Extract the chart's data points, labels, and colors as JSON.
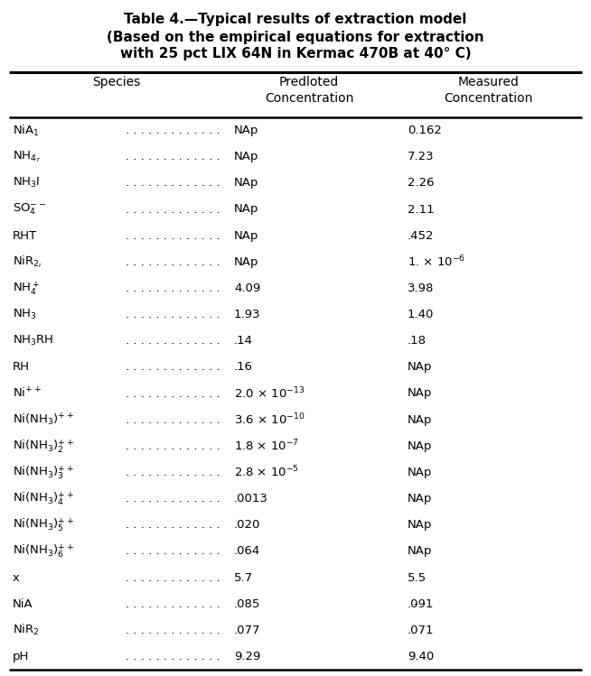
{
  "title1": "Table 4.—Typical results of extraction model",
  "title2_line1": "(Based on the empirical equations for extraction",
  "title2_line2": "with 25 pct LIX 64N in Kermac 470B at 40° C)",
  "header_species": "Species",
  "header_predicted": "Predloted\nConcentration",
  "header_measured": "Measured\nConcentration",
  "rows": [
    {
      "species": "NiA$_1$",
      "predicted": "NAp",
      "measured": "0.162"
    },
    {
      "species": "NH$_{4_T}$",
      "predicted": "NAp",
      "measured": "7.23"
    },
    {
      "species": "NH$_3$I",
      "predicted": "NAp",
      "measured": "2.26"
    },
    {
      "species": "SO$_4^{--}$",
      "predicted": "NAp",
      "measured": "2.11"
    },
    {
      "species": "RHT",
      "predicted": "NAp",
      "measured": ".452"
    },
    {
      "species": "NiR$_{2_I}$",
      "predicted": "NAp",
      "measured": "1. × 10$^{-6}$"
    },
    {
      "species": "NH$_4^+$",
      "predicted": "4.09",
      "measured": "3.98"
    },
    {
      "species": "NH$_3$",
      "predicted": "1.93",
      "measured": "1.40"
    },
    {
      "species": "NH$_3$RH",
      "predicted": ".14",
      "measured": ".18"
    },
    {
      "species": "RH",
      "predicted": ".16",
      "measured": "NAp"
    },
    {
      "species": "Ni$^{++}$",
      "predicted": "2.0 × 10$^{-13}$",
      "measured": "NAp"
    },
    {
      "species": "Ni(NH$_3$)$^{++}$",
      "predicted": "3.6 × 10$^{-10}$",
      "measured": "NAp"
    },
    {
      "species": "Ni(NH$_3$)$_2^{++}$",
      "predicted": "1.8 × 10$^{-7}$",
      "measured": "NAp"
    },
    {
      "species": "Ni(NH$_3$)$_3^{++}$",
      "predicted": "2.8 × 10$^{-5}$",
      "measured": "NAp"
    },
    {
      "species": "Ni(NH$_3$)$_4^{++}$",
      "predicted": ".0013",
      "measured": "NAp"
    },
    {
      "species": "Ni(NH$_3$)$_5^{++}$",
      "predicted": ".020",
      "measured": "NAp"
    },
    {
      "species": "Ni(NH$_3$)$_6^{++}$",
      "predicted": ".064",
      "measured": "NAp"
    },
    {
      "species": "x",
      "predicted": "5.7",
      "measured": "5.5"
    },
    {
      "species": "NiA",
      "predicted": ".085",
      "measured": ".091",
      "dash": true
    },
    {
      "species": "NiR$_2$",
      "predicted": ".077",
      "measured": ".071"
    },
    {
      "species": "pH",
      "predicted": "9.29",
      "measured": "9.40"
    }
  ],
  "bg": "#ffffff",
  "fg": "#000000",
  "title_fs": 11,
  "header_fs": 10,
  "row_fs": 9.5,
  "dots": ". . . . . . . . . . . . ."
}
